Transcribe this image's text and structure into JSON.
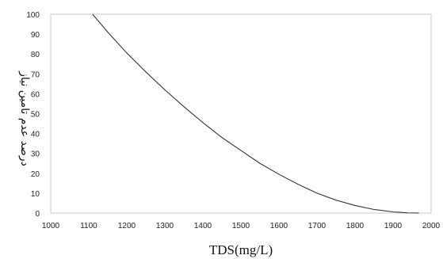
{
  "chart_data": {
    "type": "line",
    "title": "",
    "xlabel": "TDS(mg/L)",
    "ylabel": "درصد عدم تامین نیاز",
    "xlim": [
      1000,
      2000
    ],
    "ylim": [
      0,
      100
    ],
    "x_ticks": [
      1000,
      1100,
      1200,
      1300,
      1400,
      1500,
      1600,
      1700,
      1800,
      1900,
      2000
    ],
    "y_ticks": [
      0,
      10,
      20,
      30,
      40,
      50,
      60,
      70,
      80,
      90,
      100
    ],
    "grid": false,
    "series": [
      {
        "color": "#333333",
        "x": [
          1110,
          1150,
          1200,
          1250,
          1300,
          1350,
          1400,
          1450,
          1500,
          1550,
          1600,
          1650,
          1700,
          1750,
          1800,
          1850,
          1900,
          1940,
          1968
        ],
        "y": [
          100,
          91,
          80.5,
          71,
          62,
          53.5,
          45.5,
          38,
          31.5,
          25,
          19.5,
          14.5,
          10,
          6.5,
          3.8,
          1.8,
          0.6,
          0.1,
          0
        ]
      }
    ]
  }
}
